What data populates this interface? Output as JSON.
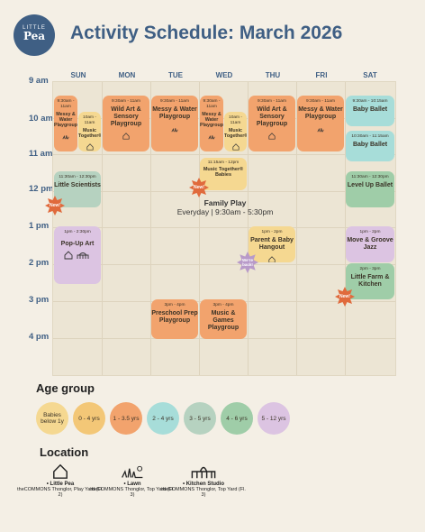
{
  "logo": {
    "top": "LITTLE",
    "main": "Pea"
  },
  "title": "Activity Schedule: March 2026",
  "days": [
    "SUN",
    "MON",
    "TUE",
    "WED",
    "THU",
    "FRI",
    "SAT"
  ],
  "times": [
    "9 am",
    "10 am",
    "11 am",
    "12 pm",
    "1 pm",
    "2 pm",
    "3 pm",
    "4 pm"
  ],
  "events": {
    "sun_messy": {
      "time": "9:30am - 11am",
      "name": "Messy & Water Playgroup"
    },
    "sun_music": {
      "time": "10am - 11am",
      "name": "Music Together®"
    },
    "sun_scientists": {
      "time": "11:30am - 12:30pm",
      "name": "Little Scientists"
    },
    "sun_popup": {
      "time": "1pm - 2:30pm",
      "name": "Pop-Up Art"
    },
    "mon_wildart": {
      "time": "9:30am - 11am",
      "name": "Wild Art & Sensory Playgroup"
    },
    "tue_messy": {
      "time": "9:30am - 11am",
      "name": "Messy & Water Playgroup"
    },
    "tue_preschool": {
      "time": "3pm - 4pm",
      "name": "Preschool Prep Playgroup"
    },
    "wed_messy": {
      "time": "9:30am - 11am",
      "name": "Messy & Water Playgroup"
    },
    "wed_music": {
      "time": "10am - 11am",
      "name": "Music Together®"
    },
    "wed_music_babies": {
      "time": "11:15am - 12pm",
      "name": "Music Together® Babies"
    },
    "wed_games": {
      "time": "3pm - 4pm",
      "name": "Music & Games Playgroup"
    },
    "thu_wildart": {
      "time": "9:30am - 11am",
      "name": "Wild Art & Sensory Playgroup"
    },
    "thu_hangout": {
      "time": "1pm - 2pm",
      "name": "Parent & Baby Hangout"
    },
    "fri_messy": {
      "time": "9:30am - 11am",
      "name": "Messy & Water Playgroup"
    },
    "sat_ballet1": {
      "time": "9:30am - 10:15am",
      "name": "Baby Ballet"
    },
    "sat_ballet2": {
      "time": "10:30am - 11:15am",
      "name": "Baby Ballet"
    },
    "sat_levelup": {
      "time": "11:30am - 12:30pm",
      "name": "Level Up Ballet"
    },
    "sat_groove": {
      "time": "1pm - 2pm",
      "name": "Move & Groove Jazz"
    },
    "sat_farm": {
      "time": "2pm - 3pm",
      "name": "Little Farm & Kitchen"
    }
  },
  "family_play": {
    "name": "Family Play",
    "hours": "Everyday | 9:30am - 5:30pm"
  },
  "badges": {
    "new": "New!",
    "back": "We're back!"
  },
  "age_heading": "Age group",
  "ages": [
    "Babies below 1y",
    "0 - 4 yrs",
    "1 - 3.5 yrs",
    "2 - 4 yrs",
    "3 - 5 yrs",
    "4 - 6 yrs",
    "5 - 12 yrs"
  ],
  "location_heading": "Location",
  "locations": [
    {
      "name": "• Little Pea",
      "detail": "theCOMMONS Thonglor, Play Yard (Fl. 2)"
    },
    {
      "name": "• Lawn",
      "detail": "theCOMMONS Thonglor, Top Yard (Fl. 3)"
    },
    {
      "name": "• Kitchen Studio",
      "detail": "theCOMMONS Thonglor, Top Yard (Fl. 3)"
    }
  ],
  "colors": {
    "orange": "#f2a36d",
    "yellow": "#f5d891",
    "blue": "#a7ddd9",
    "green": "#9fcda8",
    "purple": "#dcc4e2",
    "navy": "#3f5f84",
    "badge": "#e06a3c"
  }
}
